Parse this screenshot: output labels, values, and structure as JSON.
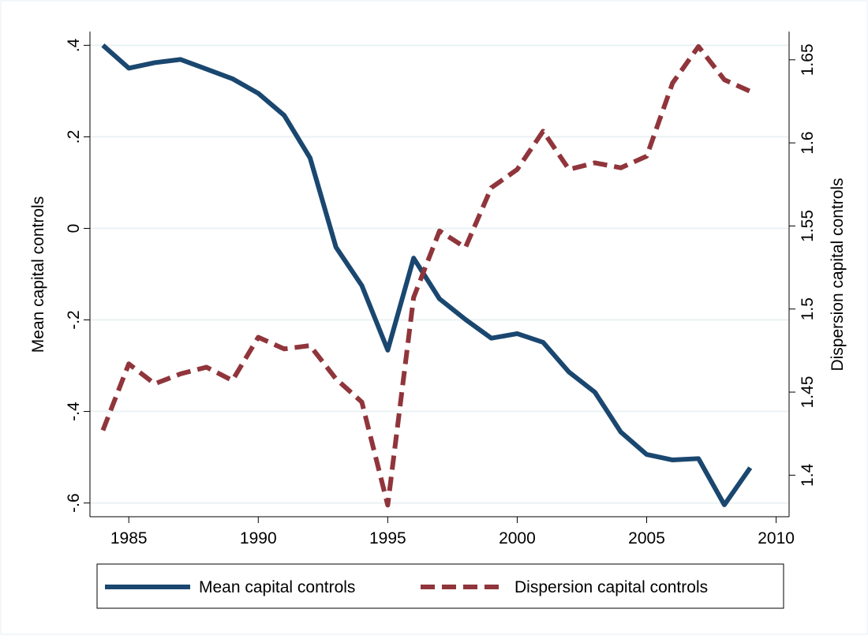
{
  "chart_data": {
    "type": "line",
    "x": [
      1984,
      1985,
      1986,
      1987,
      1988,
      1989,
      1990,
      1991,
      1992,
      1993,
      1994,
      1995,
      1996,
      1997,
      1998,
      1999,
      2000,
      2001,
      2002,
      2003,
      2004,
      2005,
      2006,
      2007,
      2008,
      2009
    ],
    "series": [
      {
        "name": "Mean capital controls",
        "color": "#1a476f",
        "dash": false,
        "values": [
          0.4,
          0.35,
          0.362,
          0.369,
          0.348,
          0.327,
          0.295,
          0.247,
          0.154,
          -0.041,
          -0.125,
          -0.266,
          -0.065,
          -0.154,
          -0.199,
          -0.24,
          -0.23,
          -0.249,
          -0.314,
          -0.358,
          -0.445,
          -0.494,
          -0.506,
          -0.503,
          -0.604,
          -0.523
        ]
      },
      {
        "name": "Dispersion capital controls",
        "color": "#90353b",
        "dash": true,
        "axis": "y2",
        "values": [
          1.427,
          1.467,
          1.455,
          1.461,
          1.465,
          1.457,
          1.483,
          1.476,
          1.478,
          1.458,
          1.444,
          1.382,
          1.507,
          1.547,
          1.537,
          1.573,
          1.584,
          1.607,
          1.584,
          1.588,
          1.585,
          1.592,
          1.636,
          1.658,
          1.638,
          1.631
        ]
      }
    ],
    "ylabel": "Mean capital controls",
    "y2label": "Dispersion capital controls",
    "xlim": [
      1983.5,
      2010.5
    ],
    "xticks": [
      1985,
      1990,
      1995,
      2000,
      2005,
      2010
    ],
    "ylim": [
      -0.63,
      0.43
    ],
    "yticks": [
      {
        "value": -0.6,
        "label": "-.6"
      },
      {
        "value": -0.4,
        "label": "-.4"
      },
      {
        "value": -0.2,
        "label": "-.2"
      },
      0,
      {
        "value": 0.2,
        "label": ".2"
      },
      {
        "value": 0.4,
        "label": ".4"
      }
    ],
    "y2lim": [
      1.375,
      1.667
    ],
    "y2ticks": [
      1.4,
      1.45,
      1.5,
      1.55,
      1.6,
      1.65
    ],
    "grid": true
  }
}
